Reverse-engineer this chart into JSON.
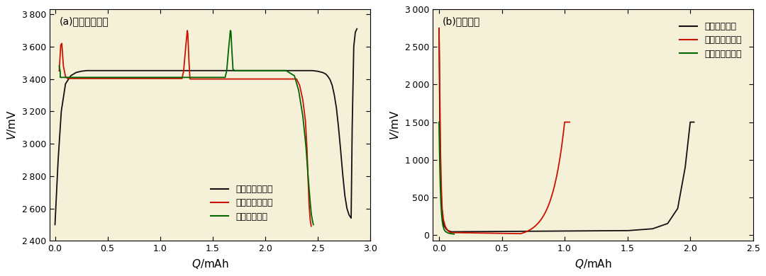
{
  "fig_width": 10.8,
  "fig_height": 3.9,
  "bg_color": "#f5f0d8",
  "panel_a": {
    "title": "(a)磷酸鐵锤正极",
    "xlabel": "Q/mAh",
    "ylabel": "V/mV",
    "xlim": [
      -0.05,
      3.0
    ],
    "ylim": [
      2400,
      3830
    ],
    "xticks": [
      0.0,
      0.5,
      1.0,
      1.5,
      2.0,
      2.5,
      3.0
    ],
    "yticks": [
      2400,
      2600,
      2800,
      3000,
      3200,
      3400,
      3600,
      3800
    ],
    "legend_labels": [
      "末期电池正极好",
      "末期电池正极坏",
      "正常电池正极"
    ]
  },
  "panel_b": {
    "title": "(b)石墨负极",
    "xlabel": "Q/mAh",
    "ylabel": "V/mV",
    "xlim": [
      -0.05,
      2.5
    ],
    "ylim": [
      -80,
      3000
    ],
    "xticks": [
      0.0,
      0.5,
      1.0,
      1.5,
      2.0,
      2.5
    ],
    "yticks": [
      0,
      500,
      1000,
      1500,
      2000,
      2500,
      3000
    ],
    "legend_labels": [
      "正常电池负极",
      "末期电池负极好",
      "末期电池负极坏"
    ]
  },
  "colors": {
    "black": "#111111",
    "red": "#cc1100",
    "green": "#006600"
  }
}
